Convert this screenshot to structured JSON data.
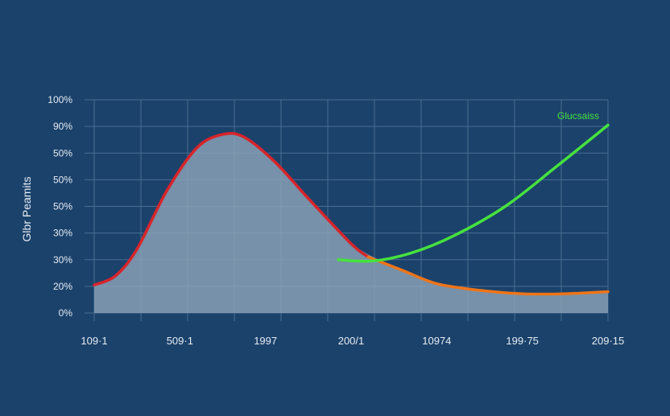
{
  "chart_data": {
    "type": "line",
    "title": "",
    "xlabel": "",
    "ylabel": "Glbr Peamits",
    "x_tick_labels": [
      "109·1",
      "509·1",
      "1997",
      "200/1",
      "10974",
      "199·75",
      "209·15"
    ],
    "y_tick_labels": [
      "0%",
      "20%",
      "30%",
      "30%",
      "50%",
      "50%",
      "50%",
      "90%",
      "100%"
    ],
    "ylim": [
      0,
      8
    ],
    "xlim": [
      0,
      6
    ],
    "grid": true,
    "series": [
      {
        "name": "",
        "color": "#d8242a",
        "style": "line",
        "points": [
          [
            0,
            1.05
          ],
          [
            0.25,
            1.4
          ],
          [
            0.5,
            2.4
          ],
          [
            0.85,
            4.6
          ],
          [
            1.2,
            6.2
          ],
          [
            1.5,
            6.7
          ],
          [
            1.75,
            6.6
          ],
          [
            2.1,
            5.7
          ],
          [
            2.5,
            4.3
          ],
          [
            3.0,
            2.6
          ],
          [
            3.2,
            2.1
          ]
        ]
      },
      {
        "name": "",
        "color": "#ef7418",
        "style": "line",
        "points": [
          [
            3.2,
            2.1
          ],
          [
            3.6,
            1.6
          ],
          [
            4.0,
            1.1
          ],
          [
            4.5,
            0.85
          ],
          [
            5.0,
            0.72
          ],
          [
            5.5,
            0.72
          ],
          [
            6.0,
            0.8
          ]
        ]
      },
      {
        "name": "Glucsaiss",
        "color": "#46e23e",
        "style": "line",
        "points": [
          [
            2.85,
            2.0
          ],
          [
            3.25,
            1.95
          ],
          [
            3.7,
            2.25
          ],
          [
            4.2,
            2.9
          ],
          [
            4.8,
            4.0
          ],
          [
            5.4,
            5.5
          ],
          [
            6.0,
            7.05
          ]
        ]
      }
    ],
    "area": {
      "color": "#8ba2b7",
      "points": [
        [
          0,
          1.05
        ],
        [
          0.25,
          1.4
        ],
        [
          0.5,
          2.4
        ],
        [
          0.85,
          4.6
        ],
        [
          1.2,
          6.2
        ],
        [
          1.5,
          6.7
        ],
        [
          1.75,
          6.6
        ],
        [
          2.1,
          5.7
        ],
        [
          2.5,
          4.3
        ],
        [
          3.0,
          2.6
        ],
        [
          3.6,
          1.6
        ],
        [
          4.0,
          1.1
        ],
        [
          4.5,
          0.85
        ],
        [
          5.0,
          0.72
        ],
        [
          5.5,
          0.72
        ],
        [
          6.0,
          0.8
        ]
      ]
    },
    "legend": {
      "label": "Glucsaiss",
      "placement": "top-right"
    }
  },
  "colors": {
    "background": "#1b426b",
    "grid": "#4a6d92",
    "text": "#e6edf4",
    "accent_green": "#46e23e"
  }
}
